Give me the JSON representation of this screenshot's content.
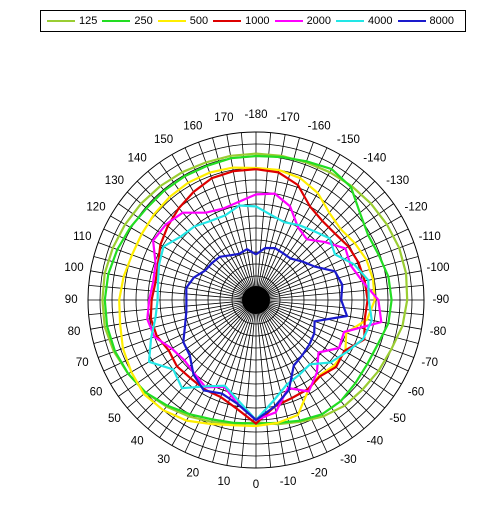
{
  "chart_data": {
    "type": "polar-line",
    "angle_ticks": [
      -180,
      -170,
      -160,
      -150,
      -140,
      -130,
      -120,
      -110,
      -100,
      -90,
      -80,
      -70,
      -60,
      -50,
      -40,
      -30,
      -20,
      -10,
      0,
      10,
      20,
      30,
      40,
      50,
      60,
      70,
      80,
      90,
      100,
      110,
      120,
      130,
      140,
      150,
      160,
      170
    ],
    "angular_grid_step_deg": 5,
    "radial_gridlines": 14,
    "radial_range": [
      0,
      14
    ],
    "legend_position": "top",
    "series": [
      {
        "name": "125",
        "color": "#9ACD32",
        "points": [
          [
            -180,
            12.2
          ],
          [
            -170,
            12.2
          ],
          [
            -160,
            12.2
          ],
          [
            -150,
            12.3
          ],
          [
            -140,
            12.4
          ],
          [
            -130,
            12.5
          ],
          [
            -120,
            12.6
          ],
          [
            -110,
            12.7
          ],
          [
            -100,
            12.7
          ],
          [
            -90,
            12.6
          ],
          [
            -80,
            12.4
          ],
          [
            -70,
            12.0
          ],
          [
            -60,
            11.8
          ],
          [
            -50,
            11.6
          ],
          [
            -40,
            11.5
          ],
          [
            -30,
            11.2
          ],
          [
            -20,
            10.8
          ],
          [
            -10,
            10.5
          ],
          [
            0,
            10.2
          ],
          [
            10,
            10.5
          ],
          [
            20,
            10.8
          ],
          [
            30,
            11.2
          ],
          [
            40,
            11.6
          ],
          [
            50,
            12.0
          ],
          [
            60,
            12.3
          ],
          [
            70,
            12.6
          ],
          [
            80,
            12.8
          ],
          [
            90,
            12.8
          ],
          [
            100,
            12.8
          ],
          [
            110,
            12.7
          ],
          [
            120,
            12.6
          ],
          [
            130,
            12.5
          ],
          [
            140,
            12.4
          ],
          [
            150,
            12.3
          ],
          [
            160,
            12.2
          ],
          [
            170,
            12.2
          ]
        ]
      },
      {
        "name": "250",
        "color": "#22DD22",
        "points": [
          [
            -180,
            12.0
          ],
          [
            -170,
            12.1
          ],
          [
            -160,
            12.3
          ],
          [
            -150,
            12.6
          ],
          [
            -140,
            12.3
          ],
          [
            -130,
            11.3
          ],
          [
            -120,
            10.8
          ],
          [
            -110,
            10.9
          ],
          [
            -100,
            11.2
          ],
          [
            -90,
            11.3
          ],
          [
            -80,
            11.2
          ],
          [
            -70,
            10.8
          ],
          [
            -60,
            10.7
          ],
          [
            -50,
            10.8
          ],
          [
            -40,
            11.0
          ],
          [
            -30,
            11.0
          ],
          [
            -20,
            10.7
          ],
          [
            -10,
            10.4
          ],
          [
            0,
            10.3
          ],
          [
            10,
            10.4
          ],
          [
            20,
            10.6
          ],
          [
            30,
            11.0
          ],
          [
            40,
            11.5
          ],
          [
            50,
            12.0
          ],
          [
            60,
            12.3
          ],
          [
            70,
            12.5
          ],
          [
            80,
            12.6
          ],
          [
            90,
            12.6
          ],
          [
            100,
            12.5
          ],
          [
            110,
            12.3
          ],
          [
            120,
            12.1
          ],
          [
            130,
            11.9
          ],
          [
            140,
            11.9
          ],
          [
            150,
            11.9
          ],
          [
            160,
            11.9
          ],
          [
            170,
            12.0
          ]
        ]
      },
      {
        "name": "500",
        "color": "#FFEE00",
        "points": [
          [
            -180,
            11.0
          ],
          [
            -170,
            11.0
          ],
          [
            -160,
            10.8
          ],
          [
            -150,
            10.3
          ],
          [
            -140,
            9.5
          ],
          [
            -130,
            9.2
          ],
          [
            -120,
            9.5
          ],
          [
            -110,
            9.8
          ],
          [
            -100,
            9.9
          ],
          [
            -90,
            9.9
          ],
          [
            -80,
            9.4
          ],
          [
            -70,
            8.0
          ],
          [
            -60,
            8.6
          ],
          [
            -50,
            8.5
          ],
          [
            -40,
            8.2
          ],
          [
            -30,
            8.7
          ],
          [
            -20,
            10.2
          ],
          [
            -10,
            10.4
          ],
          [
            0,
            10.5
          ],
          [
            10,
            10.6
          ],
          [
            20,
            11.0
          ],
          [
            30,
            11.6
          ],
          [
            40,
            12.0
          ],
          [
            50,
            12.2
          ],
          [
            60,
            12.0
          ],
          [
            70,
            11.8
          ],
          [
            80,
            11.5
          ],
          [
            90,
            11.4
          ],
          [
            100,
            11.2
          ],
          [
            110,
            11.0
          ],
          [
            120,
            11.0
          ],
          [
            130,
            11.1
          ],
          [
            140,
            11.2
          ],
          [
            150,
            11.3
          ],
          [
            160,
            11.3
          ],
          [
            170,
            11.2
          ]
        ]
      },
      {
        "name": "1000",
        "color": "#DD0000",
        "points": [
          [
            -180,
            10.9
          ],
          [
            -170,
            10.8
          ],
          [
            -160,
            10.2
          ],
          [
            -150,
            9.0
          ],
          [
            -140,
            8.6
          ],
          [
            -130,
            8.6
          ],
          [
            -120,
            8.9
          ],
          [
            -110,
            9.1
          ],
          [
            -100,
            9.2
          ],
          [
            -90,
            9.3
          ],
          [
            -80,
            9.2
          ],
          [
            -70,
            9.6
          ],
          [
            -60,
            8.5
          ],
          [
            -50,
            8.7
          ],
          [
            -40,
            8.3
          ],
          [
            -30,
            8.6
          ],
          [
            -20,
            8.7
          ],
          [
            -10,
            9.0
          ],
          [
            0,
            10.3
          ],
          [
            10,
            9.2
          ],
          [
            20,
            8.6
          ],
          [
            30,
            8.6
          ],
          [
            40,
            8.5
          ],
          [
            50,
            8.6
          ],
          [
            60,
            8.4
          ],
          [
            70,
            8.8
          ],
          [
            80,
            8.9
          ],
          [
            90,
            8.7
          ],
          [
            100,
            8.5
          ],
          [
            110,
            8.7
          ],
          [
            120,
            9.2
          ],
          [
            130,
            9.6
          ],
          [
            140,
            10.0
          ],
          [
            150,
            10.4
          ],
          [
            160,
            10.8
          ],
          [
            170,
            10.9
          ]
        ]
      },
      {
        "name": "2000",
        "color": "#FF00FF",
        "points": [
          [
            -180,
            8.8
          ],
          [
            -170,
            9.0
          ],
          [
            -160,
            8.3
          ],
          [
            -150,
            7.0
          ],
          [
            -140,
            6.6
          ],
          [
            -130,
            7.5
          ],
          [
            -120,
            8.6
          ],
          [
            -110,
            8.4
          ],
          [
            -100,
            9.0
          ],
          [
            -90,
            10.2
          ],
          [
            -80,
            10.6
          ],
          [
            -70,
            7.8
          ],
          [
            -60,
            8.0
          ],
          [
            -50,
            6.8
          ],
          [
            -40,
            7.9
          ],
          [
            -30,
            8.8
          ],
          [
            -20,
            7.8
          ],
          [
            -10,
            9.5
          ],
          [
            0,
            10.0
          ],
          [
            10,
            8.8
          ],
          [
            20,
            7.7
          ],
          [
            30,
            8.4
          ],
          [
            40,
            8.0
          ],
          [
            50,
            7.8
          ],
          [
            60,
            8.1
          ],
          [
            70,
            9.0
          ],
          [
            80,
            9.2
          ],
          [
            90,
            8.9
          ],
          [
            100,
            8.7
          ],
          [
            110,
            8.9
          ],
          [
            120,
            9.9
          ],
          [
            130,
            9.8
          ],
          [
            140,
            9.5
          ],
          [
            150,
            8.4
          ],
          [
            160,
            8.1
          ],
          [
            170,
            8.3
          ]
        ]
      },
      {
        "name": "4000",
        "color": "#22E6E6",
        "points": [
          [
            -180,
            7.8
          ],
          [
            -170,
            7.2
          ],
          [
            -160,
            6.9
          ],
          [
            -150,
            7.2
          ],
          [
            -140,
            7.5
          ],
          [
            -130,
            8.0
          ],
          [
            -120,
            7.6
          ],
          [
            -110,
            8.7
          ],
          [
            -100,
            9.5
          ],
          [
            -90,
            9.4
          ],
          [
            -80,
            9.8
          ],
          [
            -70,
            9.5
          ],
          [
            -60,
            8.7
          ],
          [
            -50,
            8.1
          ],
          [
            -40,
            7.0
          ],
          [
            -30,
            7.2
          ],
          [
            -20,
            7.5
          ],
          [
            -10,
            8.5
          ],
          [
            0,
            10.0
          ],
          [
            10,
            8.5
          ],
          [
            20,
            7.6
          ],
          [
            30,
            8.3
          ],
          [
            40,
            9.6
          ],
          [
            50,
            9.0
          ],
          [
            60,
            10.3
          ],
          [
            70,
            9.3
          ],
          [
            80,
            8.5
          ],
          [
            90,
            8.2
          ],
          [
            100,
            8.3
          ],
          [
            110,
            8.6
          ],
          [
            120,
            8.9
          ],
          [
            130,
            8.2
          ],
          [
            140,
            8.0
          ],
          [
            150,
            7.6
          ],
          [
            160,
            7.5
          ],
          [
            170,
            8.0
          ]
        ]
      },
      {
        "name": "8000",
        "color": "#1A1ACC",
        "points": [
          [
            -180,
            3.8
          ],
          [
            -170,
            4.4
          ],
          [
            -160,
            4.6
          ],
          [
            -150,
            4.5
          ],
          [
            -140,
            4.5
          ],
          [
            -130,
            5.0
          ],
          [
            -120,
            5.6
          ],
          [
            -110,
            7.0
          ],
          [
            -100,
            7.3
          ],
          [
            -90,
            7.1
          ],
          [
            -80,
            7.7
          ],
          [
            -70,
            5.2
          ],
          [
            -60,
            5.6
          ],
          [
            -50,
            5.8
          ],
          [
            -40,
            6.0
          ],
          [
            -30,
            6.3
          ],
          [
            -20,
            8.0
          ],
          [
            -10,
            9.0
          ],
          [
            0,
            10.0
          ],
          [
            10,
            8.8
          ],
          [
            20,
            8.3
          ],
          [
            30,
            8.7
          ],
          [
            40,
            8.1
          ],
          [
            50,
            7.2
          ],
          [
            60,
            7.0
          ],
          [
            70,
            6.3
          ],
          [
            80,
            5.9
          ],
          [
            90,
            5.8
          ],
          [
            100,
            5.9
          ],
          [
            110,
            5.5
          ],
          [
            120,
            4.9
          ],
          [
            130,
            4.8
          ],
          [
            140,
            4.7
          ],
          [
            150,
            4.3
          ],
          [
            160,
            4.1
          ],
          [
            170,
            4.3
          ]
        ]
      }
    ]
  }
}
